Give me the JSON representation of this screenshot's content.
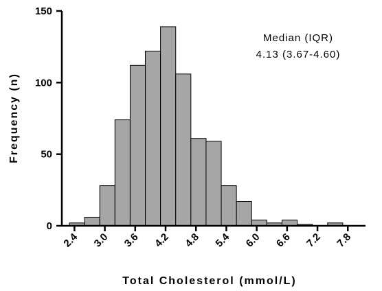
{
  "chart_data": {
    "type": "bar",
    "subtype": "histogram",
    "xlabel": "Total Cholesterol (mmol/L)",
    "ylabel": "Frequency (n)",
    "ylim": [
      0,
      150
    ],
    "yticks": [
      0,
      50,
      100,
      150
    ],
    "xlim": [
      2.2,
      7.9
    ],
    "xticks": [
      "2.4",
      "3.0",
      "3.6",
      "4.2",
      "4.8",
      "5.4",
      "6.0",
      "6.6",
      "7.2",
      "7.8"
    ],
    "bin_width": 0.3,
    "bins": [
      {
        "start": 2.3,
        "end": 2.6,
        "value": 2
      },
      {
        "start": 2.6,
        "end": 2.9,
        "value": 6
      },
      {
        "start": 2.9,
        "end": 3.2,
        "value": 28
      },
      {
        "start": 3.2,
        "end": 3.5,
        "value": 74
      },
      {
        "start": 3.5,
        "end": 3.8,
        "value": 112
      },
      {
        "start": 3.8,
        "end": 4.1,
        "value": 122
      },
      {
        "start": 4.1,
        "end": 4.4,
        "value": 139
      },
      {
        "start": 4.4,
        "end": 4.7,
        "value": 106
      },
      {
        "start": 4.7,
        "end": 5.0,
        "value": 61
      },
      {
        "start": 5.0,
        "end": 5.3,
        "value": 59
      },
      {
        "start": 5.3,
        "end": 5.6,
        "value": 28
      },
      {
        "start": 5.6,
        "end": 5.9,
        "value": 17
      },
      {
        "start": 5.9,
        "end": 6.2,
        "value": 4
      },
      {
        "start": 6.2,
        "end": 6.5,
        "value": 2
      },
      {
        "start": 6.5,
        "end": 6.8,
        "value": 4
      },
      {
        "start": 6.8,
        "end": 7.1,
        "value": 1
      },
      {
        "start": 7.1,
        "end": 7.4,
        "value": 0
      },
      {
        "start": 7.4,
        "end": 7.7,
        "value": 2
      },
      {
        "start": 7.7,
        "end": 8.0,
        "value": 0
      }
    ],
    "annotation": {
      "line1": "Median (IQR)",
      "line2": "4.13 (3.67-4.60)"
    },
    "bar_color": "#a6a6a6",
    "bar_edge_color": "#000000",
    "grid": false,
    "legend": "none"
  }
}
